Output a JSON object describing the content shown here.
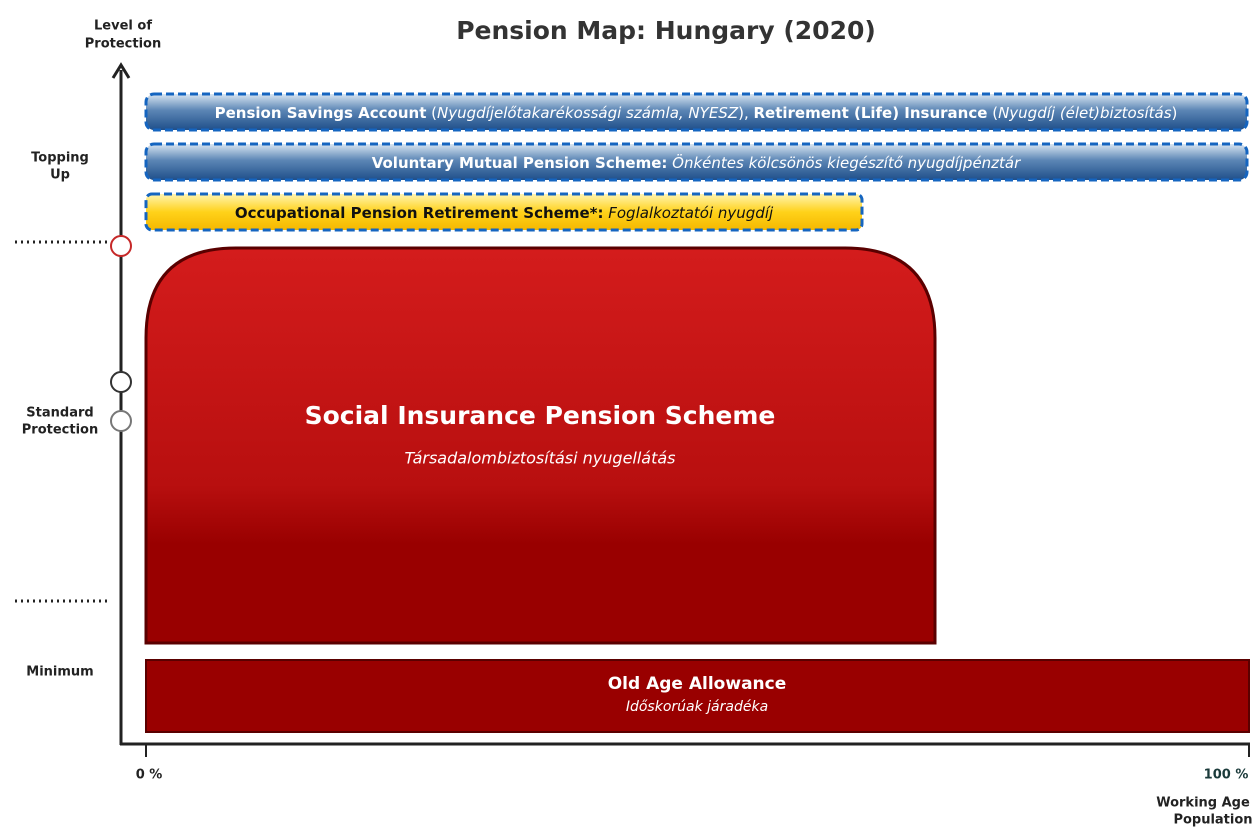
{
  "title": "Pension Map: Hungary (2020)",
  "y_axis": {
    "label_lines": [
      "Level of",
      "Protection"
    ],
    "levels": [
      {
        "lines": [
          "Topping",
          "Up"
        ]
      },
      {
        "lines": [
          "Standard",
          "Protection"
        ]
      },
      {
        "lines": [
          "Minimum"
        ]
      }
    ]
  },
  "x_axis": {
    "start": "0 %",
    "end": "100 %",
    "label_lines": [
      "Working Age",
      "Population"
    ]
  },
  "schemes": [
    {
      "parts": [
        "Pension Savings Account",
        " (",
        "Nyugdíjelőtakarékossági számla, NYESZ",
        "), ",
        "Retirement (Life) Insurance",
        " (",
        "Nyugdíj (élet)biztosítás",
        ")"
      ]
    },
    {
      "name": "Voluntary Mutual Pension Scheme:",
      "local": " Önkéntes kölcsönös kiegészítő nyugdíjpénztár"
    },
    {
      "name": "Occupational Pension Retirement Scheme*:",
      "local": " Foglalkoztatói nyugdíj"
    },
    {
      "name": "Social Insurance Pension Scheme",
      "local": "Társadalombiztosítási nyugellátás"
    },
    {
      "name": "Old Age Allowance",
      "local": "Időskorúak járadéka"
    }
  ]
}
